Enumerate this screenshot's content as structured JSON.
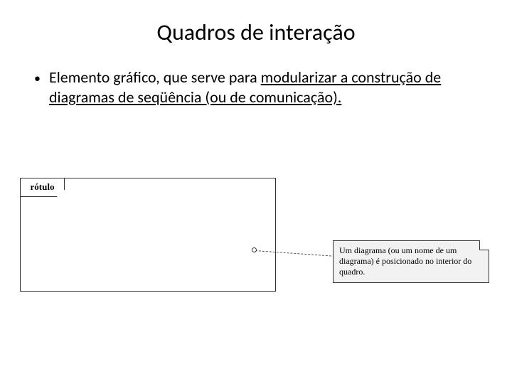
{
  "title": "Quadros de interação",
  "bullet": {
    "prefix": "Elemento gráfico, que serve para ",
    "underlined": "modularizar a construção de diagramas de seqüência (ou de comunicação)."
  },
  "frame": {
    "label": "rótulo"
  },
  "note": {
    "text": "Um diagrama (ou um nome de um diagrama) é posicionado no interior do quadro."
  },
  "colors": {
    "background": "#ffffff",
    "text": "#000000",
    "border": "#333333",
    "note_bg": "#f2f2f2"
  }
}
